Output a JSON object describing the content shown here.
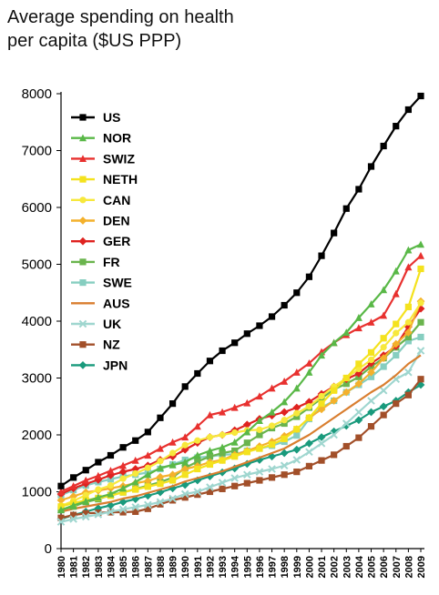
{
  "title_line1": "Average spending on health",
  "title_line2": "per capita ($US PPP)",
  "chart_data": {
    "type": "line",
    "title": "Average spending on health per capita ($US PPP)",
    "xlabel": "",
    "ylabel": "",
    "ylim": [
      0,
      8000
    ],
    "yticks": [
      0,
      1000,
      2000,
      3000,
      4000,
      5000,
      6000,
      7000,
      8000
    ],
    "x": [
      1980,
      1981,
      1982,
      1983,
      1984,
      1985,
      1986,
      1987,
      1988,
      1989,
      1990,
      1991,
      1992,
      1993,
      1994,
      1995,
      1996,
      1997,
      1998,
      1999,
      2000,
      2001,
      2002,
      2003,
      2004,
      2005,
      2006,
      2007,
      2008,
      2009
    ],
    "legend_position": "top-left",
    "grid": false,
    "series": [
      {
        "name": "US",
        "color": "#000000",
        "marker": "square",
        "values": [
          1100,
          1250,
          1380,
          1520,
          1640,
          1780,
          1900,
          2050,
          2300,
          2550,
          2850,
          3080,
          3300,
          3480,
          3620,
          3780,
          3920,
          4080,
          4280,
          4500,
          4780,
          5150,
          5550,
          5980,
          6320,
          6720,
          7080,
          7430,
          7720,
          7960
        ]
      },
      {
        "name": "NOR",
        "color": "#59b847",
        "marker": "triangle",
        "values": [
          680,
          760,
          830,
          900,
          960,
          1060,
          1170,
          1300,
          1420,
          1470,
          1520,
          1640,
          1720,
          1780,
          1870,
          2050,
          2250,
          2400,
          2580,
          2820,
          3100,
          3400,
          3620,
          3800,
          4060,
          4300,
          4550,
          4880,
          5250,
          5350
        ]
      },
      {
        "name": "SWIZ",
        "color": "#e8312f",
        "marker": "triangle",
        "values": [
          1000,
          1100,
          1200,
          1280,
          1370,
          1460,
          1550,
          1640,
          1760,
          1870,
          1960,
          2150,
          2350,
          2400,
          2480,
          2560,
          2680,
          2820,
          2940,
          3100,
          3260,
          3460,
          3620,
          3760,
          3880,
          3980,
          4100,
          4480,
          4950,
          5150
        ]
      },
      {
        "name": "NETH",
        "color": "#f4e21e",
        "marker": "square",
        "values": [
          740,
          800,
          850,
          890,
          930,
          990,
          1040,
          1090,
          1140,
          1200,
          1300,
          1400,
          1480,
          1550,
          1620,
          1700,
          1760,
          1830,
          1930,
          2100,
          2300,
          2550,
          2780,
          3000,
          3250,
          3450,
          3700,
          3950,
          4250,
          4920
        ]
      },
      {
        "name": "CAN",
        "color": "#f7e83c",
        "marker": "circle",
        "values": [
          750,
          840,
          940,
          1040,
          1110,
          1230,
          1320,
          1420,
          1540,
          1680,
          1820,
          1900,
          1960,
          2000,
          2040,
          2080,
          2090,
          2160,
          2260,
          2380,
          2500,
          2680,
          2850,
          3000,
          3160,
          3320,
          3540,
          3790,
          3980,
          4320
        ]
      },
      {
        "name": "DEN",
        "color": "#f4b12c",
        "marker": "diamond",
        "values": [
          850,
          920,
          990,
          1020,
          1060,
          1100,
          1150,
          1190,
          1260,
          1300,
          1400,
          1450,
          1520,
          1560,
          1650,
          1720,
          1800,
          1880,
          1980,
          2100,
          2300,
          2450,
          2600,
          2750,
          2900,
          3100,
          3350,
          3600,
          3800,
          4350
        ]
      },
      {
        "name": "GER",
        "color": "#df2320",
        "marker": "diamond",
        "values": [
          960,
          1060,
          1140,
          1210,
          1290,
          1350,
          1400,
          1460,
          1560,
          1620,
          1740,
          1860,
          1960,
          2000,
          2080,
          2180,
          2280,
          2340,
          2400,
          2480,
          2580,
          2720,
          2850,
          2980,
          3080,
          3260,
          3400,
          3560,
          3900,
          4220
        ]
      },
      {
        "name": "FR",
        "color": "#6ab44d",
        "marker": "square",
        "values": [
          680,
          740,
          820,
          870,
          940,
          990,
          1050,
          1110,
          1170,
          1250,
          1420,
          1530,
          1620,
          1680,
          1720,
          1860,
          2000,
          2120,
          2200,
          2320,
          2480,
          2640,
          2800,
          2900,
          3020,
          3200,
          3350,
          3540,
          3720,
          3980
        ]
      },
      {
        "name": "SWE",
        "color": "#86cec0",
        "marker": "square",
        "values": [
          940,
          1030,
          1110,
          1170,
          1220,
          1270,
          1300,
          1340,
          1400,
          1480,
          1560,
          1600,
          1620,
          1650,
          1660,
          1720,
          1760,
          1810,
          1880,
          1990,
          2280,
          2480,
          2600,
          2750,
          2880,
          3020,
          3200,
          3400,
          3650,
          3720
        ]
      },
      {
        "name": "AUS",
        "color": "#d97e2f",
        "marker": "none",
        "values": [
          650,
          700,
          740,
          780,
          820,
          880,
          920,
          980,
          1040,
          1100,
          1180,
          1240,
          1300,
          1360,
          1440,
          1520,
          1600,
          1680,
          1760,
          1880,
          2000,
          2150,
          2300,
          2450,
          2600,
          2750,
          2880,
          3050,
          3250,
          3400
        ]
      },
      {
        "name": "UK",
        "color": "#9fd6cf",
        "marker": "x",
        "values": [
          470,
          520,
          560,
          600,
          650,
          690,
          730,
          770,
          820,
          880,
          960,
          1000,
          1080,
          1160,
          1240,
          1300,
          1350,
          1400,
          1460,
          1560,
          1700,
          1850,
          2000,
          2200,
          2400,
          2600,
          2780,
          2980,
          3100,
          3480
        ]
      },
      {
        "name": "NZ",
        "color": "#a24f29",
        "marker": "square",
        "values": [
          540,
          590,
          620,
          630,
          640,
          640,
          650,
          700,
          780,
          850,
          900,
          950,
          1000,
          1050,
          1100,
          1150,
          1200,
          1250,
          1300,
          1350,
          1450,
          1550,
          1650,
          1800,
          1950,
          2150,
          2350,
          2550,
          2700,
          2980
        ]
      },
      {
        "name": "JPN",
        "color": "#199a7c",
        "marker": "diamond",
        "values": [
          520,
          590,
          650,
          710,
          760,
          820,
          870,
          930,
          990,
          1060,
          1120,
          1200,
          1270,
          1340,
          1410,
          1490,
          1560,
          1620,
          1680,
          1740,
          1850,
          1960,
          2060,
          2160,
          2260,
          2400,
          2500,
          2600,
          2750,
          2880
        ]
      }
    ]
  }
}
